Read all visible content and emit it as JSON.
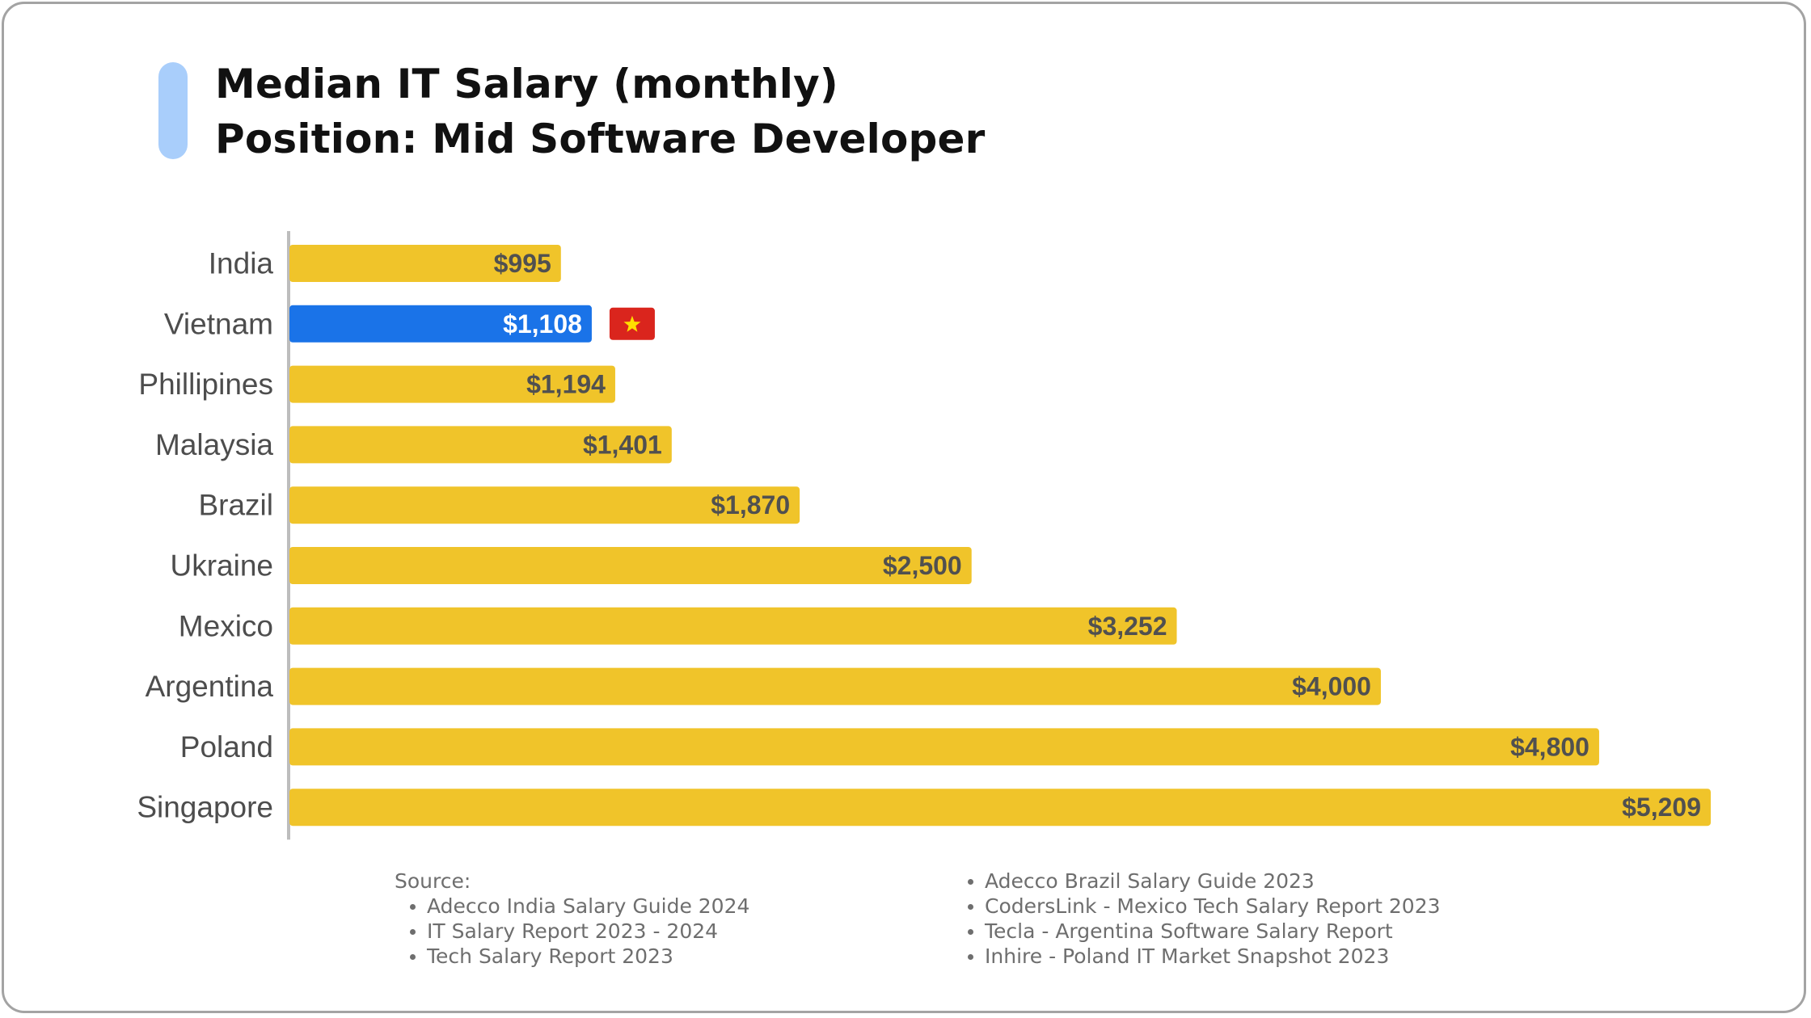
{
  "title": {
    "line1": "Median IT Salary (monthly)",
    "line2": "Position: Mid Software Developer"
  },
  "chart_data": {
    "type": "bar",
    "orientation": "horizontal",
    "title": "Median IT Salary (monthly) Position: Mid Software Developer",
    "categories": [
      "India",
      "Vietnam",
      "Phillipines",
      "Malaysia",
      "Brazil",
      "Ukraine",
      "Mexico",
      "Argentina",
      "Poland",
      "Singapore"
    ],
    "values": [
      995,
      1108,
      1194,
      1401,
      1870,
      2500,
      3252,
      4000,
      4800,
      5209
    ],
    "labels": [
      "$995",
      "$1,108",
      "$1,194",
      "$1,401",
      "$1,870",
      "$2,500",
      "$3,252",
      "$4,000",
      "$4,800",
      "$5,209"
    ],
    "highlight": "Vietnam",
    "highlight_marker": "vietnam-flag",
    "xlim": [
      0,
      5209
    ],
    "xlabel": "",
    "ylabel": "",
    "grid": false,
    "colors": {
      "bar": "#f0c42a",
      "highlight": "#1a73e8",
      "label": "#505050",
      "highlight_label": "#ffffff",
      "category": "#4d4d4d",
      "axis": "#bdbdbd",
      "flag_red": "#da251d",
      "flag_star": "#ffde00"
    }
  },
  "sources": {
    "heading": "Source:",
    "left": [
      "Adecco India Salary Guide 2024",
      "IT Salary Report 2023 - 2024",
      "Tech Salary Report 2023"
    ],
    "right": [
      "Adecco Brazil Salary Guide 2023",
      "CodersLink - Mexico Tech Salary Report 2023",
      "Tecla - Argentina Software Salary Report",
      "Inhire - Poland IT Market Snapshot 2023"
    ]
  }
}
